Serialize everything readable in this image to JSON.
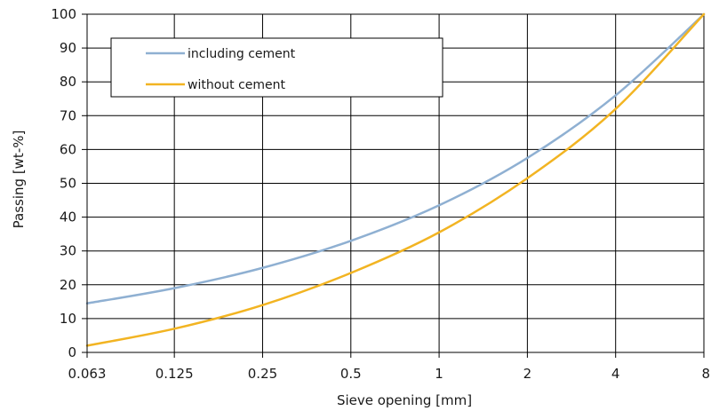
{
  "chart_data": {
    "type": "line",
    "xlabel": "Sieve opening [mm]",
    "ylabel": "Passing [wt-%]",
    "x_scale": "log",
    "x": [
      0.063,
      0.125,
      0.25,
      0.5,
      1,
      2,
      4,
      8
    ],
    "x_tick_labels": [
      "0.063",
      "0.125",
      "0.25",
      "0.5",
      "1",
      "2",
      "4",
      "8"
    ],
    "ylim": [
      0,
      100
    ],
    "y_ticks": [
      0,
      10,
      20,
      30,
      40,
      50,
      60,
      70,
      80,
      90,
      100
    ],
    "y_tick_labels": [
      "0",
      "10",
      "20",
      "30",
      "40",
      "50",
      "60",
      "70",
      "80",
      "90",
      "100"
    ],
    "grid": true,
    "legend_position": "top-left",
    "series": [
      {
        "name": "including cement",
        "color": "#8fb0d2",
        "values": [
          14.5,
          19,
          25,
          33,
          43.5,
          57.5,
          76,
          100
        ]
      },
      {
        "name": "without cement",
        "color": "#f2b422",
        "values": [
          2,
          7,
          14,
          23.5,
          35.5,
          51.5,
          72,
          100
        ]
      }
    ]
  }
}
